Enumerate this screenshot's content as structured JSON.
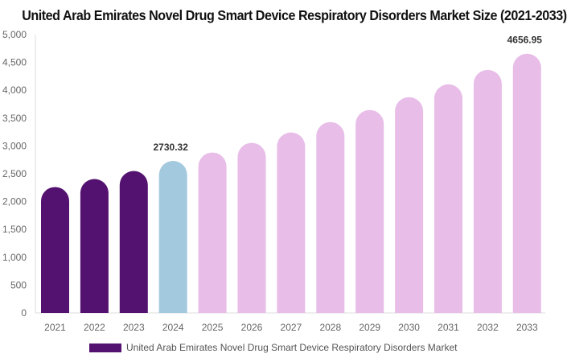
{
  "chart_data": {
    "type": "bar",
    "title": "United Arab Emirates Novel Drug Smart Device Respiratory Disorders Market Size (2021-2033)",
    "categories": [
      "2021",
      "2022",
      "2023",
      "2024",
      "2025",
      "2026",
      "2027",
      "2028",
      "2029",
      "2030",
      "2031",
      "2032",
      "2033"
    ],
    "series": [
      {
        "name": "United Arab Emirates Novel Drug Smart Device Respiratory Disorders Market",
        "values": [
          2262,
          2406,
          2550,
          2730.32,
          2882,
          3055,
          3242,
          3429,
          3646,
          3876,
          4107,
          4366,
          4656.95
        ]
      }
    ],
    "data_labels": {
      "3": "2730.32",
      "12": "4656.95"
    },
    "bar_colors": [
      "#541270",
      "#541270",
      "#541270",
      "#a3c9de",
      "#e8bde8",
      "#e8bde8",
      "#e8bde8",
      "#e8bde8",
      "#e8bde8",
      "#e8bde8",
      "#e8bde8",
      "#e8bde8",
      "#e8bde8"
    ],
    "yticks": [
      "0",
      "500",
      "1,000",
      "1,500",
      "2,000",
      "2,500",
      "3,000",
      "3,500",
      "4,000",
      "4,500",
      "5,000"
    ],
    "ylim": [
      0,
      5000
    ],
    "grid": false,
    "legend_position": "bottom",
    "legend_color": "#541270"
  }
}
